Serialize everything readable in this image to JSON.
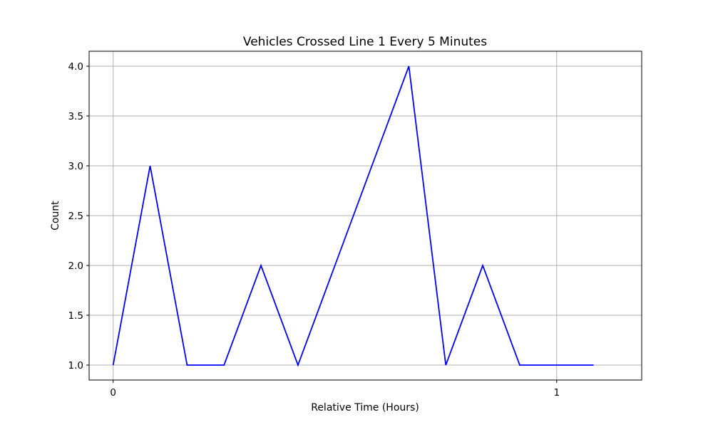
{
  "chart_data": {
    "type": "line",
    "title": "Vehicles Crossed Line 1 Every 5 Minutes",
    "xlabel": "Relative Time (Hours)",
    "ylabel": "Count",
    "x_ticks": [
      0,
      1
    ],
    "y_ticks": [
      1.0,
      1.5,
      2.0,
      2.5,
      3.0,
      3.5,
      4.0
    ],
    "x_tick_labels": [
      "0",
      "1"
    ],
    "y_tick_labels": [
      "1.0",
      "1.5",
      "2.0",
      "2.5",
      "3.0",
      "3.5",
      "4.0"
    ],
    "xlim": [
      -0.0542,
      1.1917
    ],
    "ylim": [
      0.85,
      4.15
    ],
    "grid": true,
    "series": [
      {
        "color": "#0000ff",
        "x": [
          0,
          0.0833,
          0.1667,
          0.25,
          0.3333,
          0.4167,
          0.5,
          0.5833,
          0.6667,
          0.75,
          0.8333,
          0.9167,
          1.0,
          1.0833
        ],
        "y": [
          1,
          3,
          1,
          1,
          2,
          1,
          2,
          3,
          4,
          1,
          2,
          1,
          1,
          1
        ]
      }
    ]
  }
}
